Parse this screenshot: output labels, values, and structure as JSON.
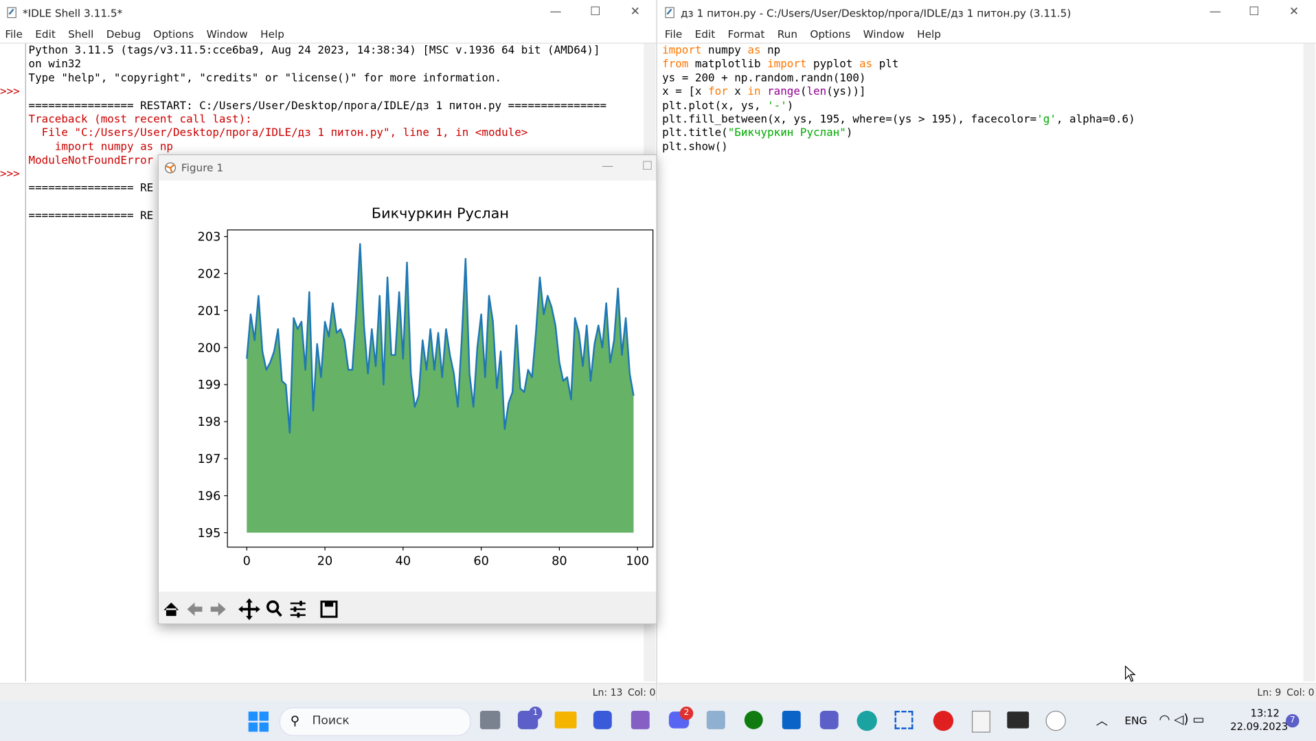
{
  "shell": {
    "title": "*IDLE Shell 3.11.5*",
    "menu": [
      "File",
      "Edit",
      "Shell",
      "Debug",
      "Options",
      "Window",
      "Help"
    ],
    "banner": [
      "Python 3.11.5 (tags/v3.11.5:cce6ba9, Aug 24 2023, 14:38:34) [MSC v.1936 64 bit (AMD64)]",
      "on win32",
      "Type \"help\", \"copyright\", \"credits\" or \"license()\" for more information."
    ],
    "restart": "================ RESTART: C:/Users/User/Desktop/прога/IDLE/дз 1 питон.py ===============",
    "traceback": [
      "Traceback (most recent call last):",
      "  File \"C:/Users/User/Desktop/прога/IDLE/дз 1 питон.py\", line 1, in <module>",
      "    import numpy as np",
      "ModuleNotFoundError"
    ],
    "restart_cut": [
      "================ RE",
      "================ RE"
    ],
    "prompt": ">>>",
    "status": [
      "Ln: 13",
      "Col: 0"
    ]
  },
  "editor": {
    "title": "дз 1 питон.py - C:/Users/User/Desktop/прога/IDLE/дз 1 питон.py (3.11.5)",
    "menu": [
      "File",
      "Edit",
      "Format",
      "Run",
      "Options",
      "Window",
      "Help"
    ],
    "code": [
      [
        {
          "t": "import",
          "c": "#ff7700"
        },
        {
          "t": " numpy "
        },
        {
          "t": "as",
          "c": "#ff7700"
        },
        {
          "t": " np"
        }
      ],
      [
        {
          "t": "from",
          "c": "#ff7700"
        },
        {
          "t": " matplotlib "
        },
        {
          "t": "import",
          "c": "#ff7700"
        },
        {
          "t": " pyplot "
        },
        {
          "t": "as",
          "c": "#ff7700"
        },
        {
          "t": " plt"
        }
      ],
      [
        {
          "t": "ys = 200 + np.random.randn(100)"
        }
      ],
      [
        {
          "t": "x = [x "
        },
        {
          "t": "for",
          "c": "#ff7700"
        },
        {
          "t": " x "
        },
        {
          "t": "in",
          "c": "#ff7700"
        },
        {
          "t": " "
        },
        {
          "t": "range",
          "c": "#900090"
        },
        {
          "t": "("
        },
        {
          "t": "len",
          "c": "#900090"
        },
        {
          "t": "(ys))]"
        }
      ],
      [
        {
          "t": "plt.plot(x, ys, "
        },
        {
          "t": "'-'",
          "c": "#00aa00"
        },
        {
          "t": ")"
        }
      ],
      [
        {
          "t": "plt.fill_between(x, ys, 195, where=(ys > 195), facecolor="
        },
        {
          "t": "'g'",
          "c": "#00aa00"
        },
        {
          "t": ", alpha=0.6)"
        }
      ],
      [
        {
          "t": "plt.title("
        },
        {
          "t": "\"Бикчуркин Руслан\"",
          "c": "#00aa00"
        },
        {
          "t": ")"
        }
      ],
      [
        {
          "t": "plt.show()"
        }
      ]
    ],
    "status": [
      "Ln: 9",
      "Col: 0"
    ]
  },
  "figure": {
    "title": "Figure 1",
    "chart_data": {
      "type": "area",
      "title": "Бикчуркин Руслан",
      "x": [
        0,
        1,
        2,
        3,
        4,
        5,
        6,
        7,
        8,
        9,
        10,
        11,
        12,
        13,
        14,
        15,
        16,
        17,
        18,
        19,
        20,
        21,
        22,
        23,
        24,
        25,
        26,
        27,
        28,
        29,
        30,
        31,
        32,
        33,
        34,
        35,
        36,
        37,
        38,
        39,
        40,
        41,
        42,
        43,
        44,
        45,
        46,
        47,
        48,
        49,
        50,
        51,
        52,
        53,
        54,
        55,
        56,
        57,
        58,
        59,
        60,
        61,
        62,
        63,
        64,
        65,
        66,
        67,
        68,
        69,
        70,
        71,
        72,
        73,
        74,
        75,
        76,
        77,
        78,
        79,
        80,
        81,
        82,
        83,
        84,
        85,
        86,
        87,
        88,
        89,
        90,
        91,
        92,
        93,
        94,
        95,
        96,
        97,
        98,
        99
      ],
      "values": [
        199.7,
        200.9,
        200.2,
        201.4,
        199.9,
        199.4,
        199.6,
        199.9,
        200.5,
        199.1,
        199.0,
        197.7,
        200.8,
        200.5,
        200.7,
        199.4,
        201.5,
        198.3,
        200.1,
        199.2,
        200.7,
        200.3,
        201.2,
        200.4,
        200.5,
        200.2,
        199.4,
        199.4,
        200.9,
        202.8,
        200.6,
        199.3,
        200.5,
        199.5,
        201.4,
        199.0,
        201.9,
        199.8,
        199.8,
        201.5,
        199.7,
        202.3,
        199.3,
        198.4,
        198.7,
        200.2,
        199.4,
        200.5,
        199.4,
        200.4,
        199.2,
        200.5,
        199.8,
        199.3,
        198.4,
        200.2,
        202.4,
        199.3,
        198.4,
        200.0,
        200.9,
        199.2,
        201.4,
        200.7,
        198.9,
        199.9,
        197.8,
        198.5,
        198.8,
        200.6,
        198.9,
        198.8,
        199.4,
        199.2,
        200.4,
        201.9,
        200.9,
        201.4,
        201.1,
        200.6,
        199.6,
        199.1,
        199.2,
        198.6,
        200.8,
        200.4,
        199.5,
        200.6,
        199.1,
        200.1,
        200.6,
        200.0,
        201.2,
        199.6,
        200.2,
        201.6,
        199.8,
        200.8,
        199.3,
        198.7
      ],
      "baseline": 195,
      "line_color": "#1f77b4",
      "fill_color": "#66b266",
      "xlim": [
        -4.95,
        103.95
      ],
      "ylim": [
        194.61,
        203.18
      ],
      "xticks": [
        0,
        20,
        40,
        60,
        80,
        100
      ],
      "yticks": [
        195,
        196,
        197,
        198,
        199,
        200,
        201,
        202,
        203
      ]
    }
  },
  "taskbar": {
    "search": "Поиск",
    "badges": [
      "1",
      "2"
    ],
    "lang": "ENG",
    "time": "13:12",
    "date": "22.09.2023",
    "notifications": "7"
  }
}
